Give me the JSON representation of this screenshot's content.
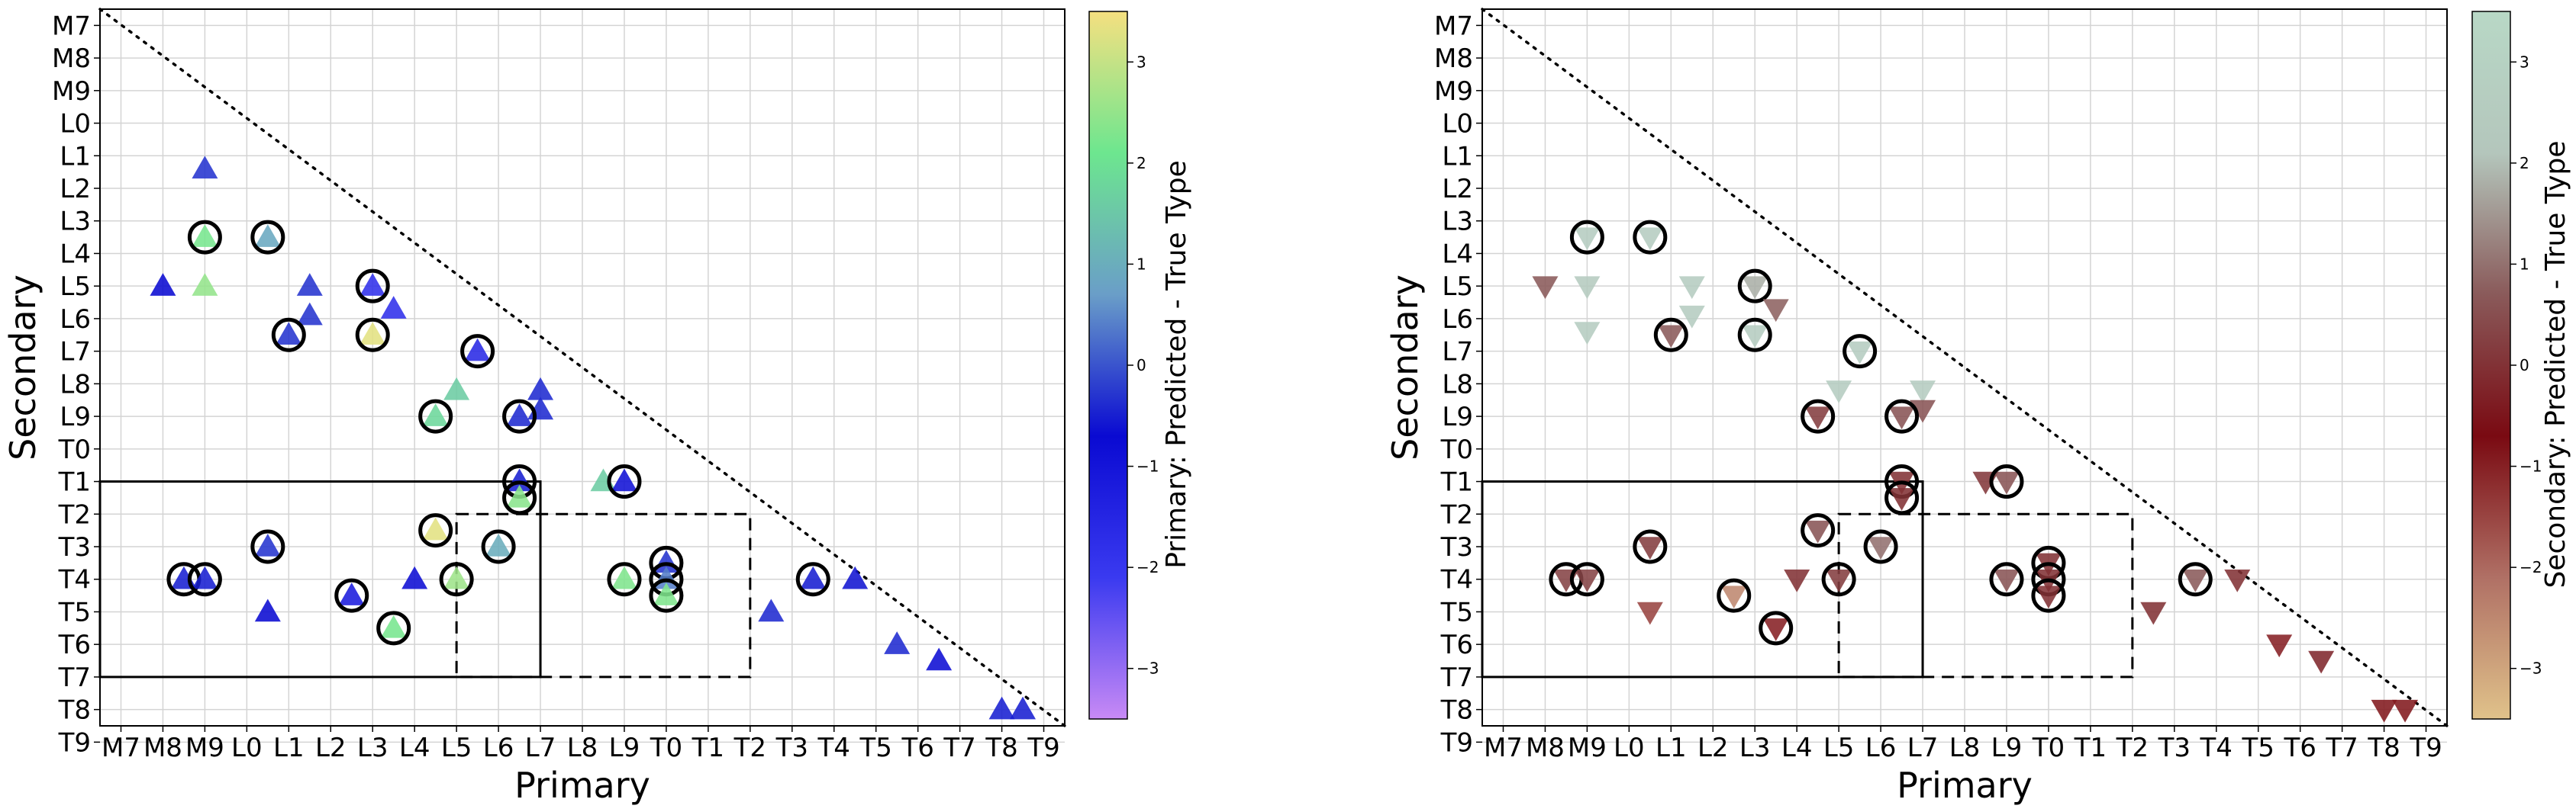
{
  "chart_data": [
    {
      "type": "scatter",
      "xlabel": "Primary",
      "ylabel": "Secondary",
      "x_ticks": [
        "M7",
        "M8",
        "M9",
        "L0",
        "L1",
        "L2",
        "L3",
        "L4",
        "L5",
        "L6",
        "L7",
        "L8",
        "L9",
        "T0",
        "T1",
        "T2",
        "T3",
        "T4",
        "T5",
        "T6",
        "T7",
        "T8",
        "T9"
      ],
      "y_ticks": [
        "M7",
        "M8",
        "M9",
        "L0",
        "L1",
        "L2",
        "L3",
        "L4",
        "L5",
        "L6",
        "L7",
        "L8",
        "L9",
        "T0",
        "T1",
        "T2",
        "T3",
        "T4",
        "T5",
        "T6",
        "T7",
        "T8",
        "T9"
      ],
      "grid": true,
      "marker": "triangle-up",
      "colorbar": {
        "label": "Primary: Predicted - True Type",
        "range": [
          -3.5,
          3.5
        ],
        "ticks": [
          "3",
          "2",
          "1",
          "0",
          "−1",
          "−2",
          "−3"
        ],
        "colormap": [
          "#c88af5",
          "#3a3af0",
          "#0a0ad2",
          "#6a9ec8",
          "#6de68f",
          "#f5e080"
        ]
      },
      "boxes": [
        {
          "style": "solid",
          "x_range": [
            "M7",
            "L7"
          ],
          "y_range": [
            "T1",
            "T7"
          ]
        },
        {
          "style": "dashed",
          "x_range": [
            "L5",
            "T2"
          ],
          "y_range": [
            "T2",
            "T7"
          ]
        }
      ],
      "points": [
        {
          "x": 1.0,
          "y": 9.0,
          "c": -0.7,
          "circled": false
        },
        {
          "x": 2.0,
          "y": 9.0,
          "c": 2.5,
          "circled": false
        },
        {
          "x": 2.0,
          "y": 10.5,
          "c": 2.2,
          "circled": true
        },
        {
          "x": 2.0,
          "y": 12.6,
          "c": -0.3,
          "circled": false
        },
        {
          "x": 3.5,
          "y": 10.5,
          "c": 0.9,
          "circled": true
        },
        {
          "x": 4.5,
          "y": 9.0,
          "c": -0.3,
          "circled": false
        },
        {
          "x": 4.5,
          "y": 8.1,
          "c": -0.3,
          "circled": false
        },
        {
          "x": 4.0,
          "y": 7.5,
          "c": -0.3,
          "circled": true
        },
        {
          "x": 6.0,
          "y": 9.0,
          "c": -1.8,
          "circled": true
        },
        {
          "x": 6.5,
          "y": 8.3,
          "c": -1.8,
          "circled": false
        },
        {
          "x": 6.0,
          "y": 7.5,
          "c": 3.3,
          "circled": true
        },
        {
          "x": 8.5,
          "y": 7.0,
          "c": -1.6,
          "circled": true
        },
        {
          "x": 8.0,
          "y": 5.8,
          "c": 1.6,
          "circled": false
        },
        {
          "x": 7.5,
          "y": 5.0,
          "c": 1.8,
          "circled": true
        },
        {
          "x": 10.0,
          "y": 5.8,
          "c": -0.4,
          "circled": false
        },
        {
          "x": 10.0,
          "y": 5.2,
          "c": -0.4,
          "circled": false
        },
        {
          "x": 9.5,
          "y": 5.0,
          "c": -0.4,
          "circled": true
        },
        {
          "x": 9.5,
          "y": 3.0,
          "c": -0.5,
          "circled": true
        },
        {
          "x": 9.5,
          "y": 2.5,
          "c": 2.4,
          "circled": true
        },
        {
          "x": 11.5,
          "y": 3.0,
          "c": 1.6,
          "circled": false
        },
        {
          "x": 12.0,
          "y": 3.0,
          "c": -0.9,
          "circled": true
        },
        {
          "x": 7.5,
          "y": 1.5,
          "c": 3.3,
          "circled": true
        },
        {
          "x": 3.5,
          "y": 1.0,
          "c": -0.3,
          "circled": true
        },
        {
          "x": 9.0,
          "y": 1.0,
          "c": 1.0,
          "circled": true
        },
        {
          "x": 1.5,
          "y": 0.0,
          "c": -0.5,
          "circled": true
        },
        {
          "x": 2.0,
          "y": 0.0,
          "c": -0.5,
          "circled": true
        },
        {
          "x": 3.5,
          "y": -1.0,
          "c": -0.7,
          "circled": false
        },
        {
          "x": 5.5,
          "y": -0.5,
          "c": -1.2,
          "circled": true
        },
        {
          "x": 7.0,
          "y": 0.0,
          "c": -0.8,
          "circled": false
        },
        {
          "x": 8.0,
          "y": 0.0,
          "c": 2.6,
          "circled": true
        },
        {
          "x": 6.5,
          "y": -1.5,
          "c": 2.2,
          "circled": true
        },
        {
          "x": 12.0,
          "y": 0.0,
          "c": 2.3,
          "circled": true
        },
        {
          "x": 13.0,
          "y": 0.5,
          "c": -0.3,
          "circled": true
        },
        {
          "x": 13.0,
          "y": 0.0,
          "c": 0.4,
          "circled": true
        },
        {
          "x": 13.0,
          "y": -0.5,
          "c": 2.3,
          "circled": true
        },
        {
          "x": 15.5,
          "y": -1.0,
          "c": -0.4,
          "circled": false
        },
        {
          "x": 16.5,
          "y": 0.0,
          "c": -0.5,
          "circled": true
        },
        {
          "x": 17.5,
          "y": 0.0,
          "c": -0.6,
          "circled": false
        },
        {
          "x": 18.5,
          "y": -2.0,
          "c": -0.4,
          "circled": false
        },
        {
          "x": 19.5,
          "y": -2.5,
          "c": -0.8,
          "circled": false
        },
        {
          "x": 21.0,
          "y": -4.0,
          "c": -0.5,
          "circled": false
        },
        {
          "x": 21.5,
          "y": -4.0,
          "c": -0.5,
          "circled": false
        }
      ]
    },
    {
      "type": "scatter",
      "xlabel": "Primary",
      "ylabel": "Secondary",
      "x_ticks": [
        "M7",
        "M8",
        "M9",
        "L0",
        "L1",
        "L2",
        "L3",
        "L4",
        "L5",
        "L6",
        "L7",
        "L8",
        "L9",
        "T0",
        "T1",
        "T2",
        "T3",
        "T4",
        "T5",
        "T6",
        "T7",
        "T8",
        "T9"
      ],
      "y_ticks": [
        "M7",
        "M8",
        "M9",
        "L0",
        "L1",
        "L2",
        "L3",
        "L4",
        "L5",
        "L6",
        "L7",
        "L8",
        "L9",
        "T0",
        "T1",
        "T2",
        "T3",
        "T4",
        "T5",
        "T6",
        "T7",
        "T8",
        "T9"
      ],
      "grid": true,
      "marker": "triangle-down",
      "colorbar": {
        "label": "Secondary: Predicted - True Type",
        "range": [
          -3.5,
          3.5
        ],
        "ticks": [
          "3",
          "2",
          "1",
          "0",
          "−1",
          "−2",
          "−3"
        ],
        "colormap": [
          "#e0c28a",
          "#b07065",
          "#7a0a12",
          "#8a5a5a",
          "#b4c6bc",
          "#b8d8c6"
        ]
      },
      "boxes": [
        {
          "style": "solid",
          "x_range": [
            "M7",
            "L7"
          ],
          "y_range": [
            "T1",
            "T7"
          ]
        },
        {
          "style": "dashed",
          "x_range": [
            "L5",
            "T2"
          ],
          "y_range": [
            "T2",
            "T7"
          ]
        }
      ],
      "points": [
        {
          "x": 1.0,
          "y": 9.0,
          "c": 0.7,
          "circled": false
        },
        {
          "x": 2.0,
          "y": 9.0,
          "c": 2.5,
          "circled": false
        },
        {
          "x": 2.0,
          "y": 10.5,
          "c": 2.6,
          "circled": true
        },
        {
          "x": 2.0,
          "y": 7.6,
          "c": 2.6,
          "circled": false
        },
        {
          "x": 3.5,
          "y": 10.5,
          "c": 2.6,
          "circled": true
        },
        {
          "x": 4.5,
          "y": 9.0,
          "c": 2.6,
          "circled": false
        },
        {
          "x": 4.5,
          "y": 8.1,
          "c": 2.6,
          "circled": false
        },
        {
          "x": 4.0,
          "y": 7.5,
          "c": 0.7,
          "circled": true
        },
        {
          "x": 6.0,
          "y": 9.0,
          "c": 1.8,
          "circled": true
        },
        {
          "x": 6.5,
          "y": 8.3,
          "c": 0.8,
          "circled": false
        },
        {
          "x": 6.0,
          "y": 7.5,
          "c": 2.6,
          "circled": true
        },
        {
          "x": 8.5,
          "y": 7.0,
          "c": 2.6,
          "circled": true
        },
        {
          "x": 8.0,
          "y": 5.8,
          "c": 2.6,
          "circled": false
        },
        {
          "x": 7.5,
          "y": 5.0,
          "c": 0.2,
          "circled": true
        },
        {
          "x": 10.0,
          "y": 5.8,
          "c": 2.6,
          "circled": false
        },
        {
          "x": 10.0,
          "y": 5.2,
          "c": 0.6,
          "circled": false
        },
        {
          "x": 9.5,
          "y": 5.0,
          "c": 0.6,
          "circled": true
        },
        {
          "x": 9.5,
          "y": 3.0,
          "c": 0.0,
          "circled": true
        },
        {
          "x": 9.5,
          "y": 2.5,
          "c": 0.0,
          "circled": true
        },
        {
          "x": 11.5,
          "y": 3.0,
          "c": 0.1,
          "circled": false
        },
        {
          "x": 12.0,
          "y": 3.0,
          "c": 0.6,
          "circled": true
        },
        {
          "x": 7.5,
          "y": 1.5,
          "c": 0.6,
          "circled": true
        },
        {
          "x": 3.5,
          "y": 1.0,
          "c": 0.2,
          "circled": true
        },
        {
          "x": 9.0,
          "y": 1.0,
          "c": 1.0,
          "circled": true
        },
        {
          "x": 1.5,
          "y": 0.0,
          "c": 0.3,
          "circled": true
        },
        {
          "x": 2.0,
          "y": 0.0,
          "c": 0.3,
          "circled": true
        },
        {
          "x": 3.5,
          "y": -1.0,
          "c": -1.5,
          "circled": false
        },
        {
          "x": 5.5,
          "y": -0.5,
          "c": -2.5,
          "circled": true
        },
        {
          "x": 7.0,
          "y": 0.0,
          "c": 0.0,
          "circled": false
        },
        {
          "x": 8.0,
          "y": 0.0,
          "c": 0.2,
          "circled": true
        },
        {
          "x": 6.5,
          "y": -1.5,
          "c": -1.0,
          "circled": true
        },
        {
          "x": 12.0,
          "y": 0.0,
          "c": 0.6,
          "circled": true
        },
        {
          "x": 13.0,
          "y": 0.5,
          "c": 0.0,
          "circled": true
        },
        {
          "x": 13.0,
          "y": 0.0,
          "c": 0.0,
          "circled": true
        },
        {
          "x": 13.0,
          "y": -0.5,
          "c": 0.0,
          "circled": true
        },
        {
          "x": 15.5,
          "y": -1.0,
          "c": 0.0,
          "circled": false
        },
        {
          "x": 16.5,
          "y": 0.0,
          "c": 0.7,
          "circled": true
        },
        {
          "x": 17.5,
          "y": 0.0,
          "c": 0.0,
          "circled": false
        },
        {
          "x": 18.5,
          "y": -2.0,
          "c": -1.0,
          "circled": false
        },
        {
          "x": 19.5,
          "y": -2.5,
          "c": -0.2,
          "circled": false
        },
        {
          "x": 21.0,
          "y": -4.0,
          "c": -0.9,
          "circled": false
        },
        {
          "x": 21.5,
          "y": -4.0,
          "c": -0.9,
          "circled": false
        }
      ]
    }
  ]
}
